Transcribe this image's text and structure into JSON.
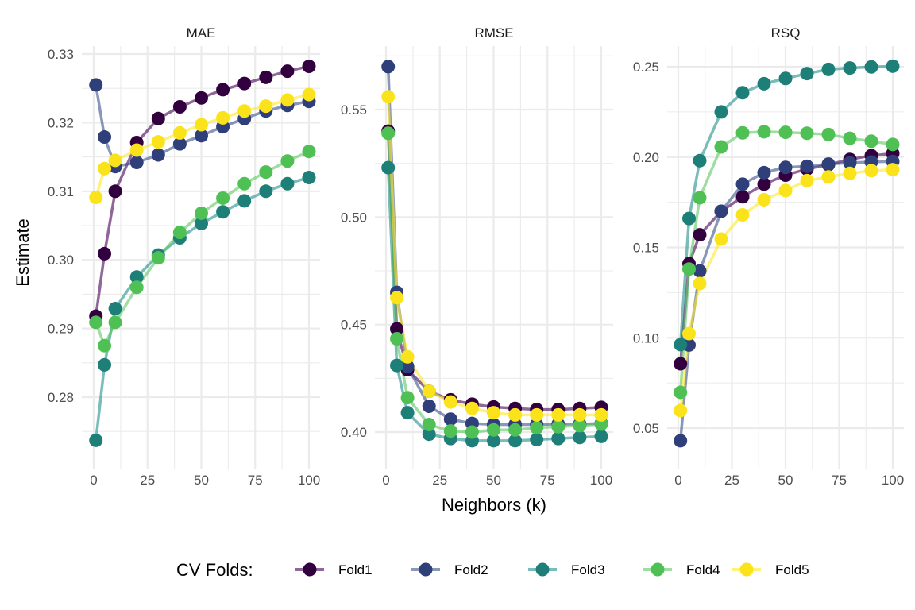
{
  "chart_data": {
    "type": "line",
    "xlabel": "Neighbors (k)",
    "ylabel": "Estimate",
    "legend": {
      "title": "CV Folds:",
      "position": "bottom"
    },
    "grid": true,
    "x": [
      1,
      5,
      10,
      20,
      30,
      40,
      50,
      60,
      70,
      80,
      90,
      100
    ],
    "xlim": [
      0,
      100
    ],
    "x_ticks": [
      "0",
      "25",
      "50",
      "75",
      "100"
    ],
    "series_colors": {
      "Fold1": "#440154",
      "Fold2": "#3B528B",
      "Fold3": "#21908C",
      "Fold4": "#5DC863",
      "Fold5": "#FDE725"
    },
    "point_colors": {
      "Fold1": "#33003f",
      "Fold2": "#2e3f7a",
      "Fold3": "#1e7f78",
      "Fold4": "#4fc154",
      "Fold5": "#fbe31b"
    },
    "panels": [
      {
        "title": "MAE",
        "ylim": [
          0.2705,
          0.3305
        ],
        "y_ticks": [
          "0.28",
          "0.29",
          "0.30",
          "0.31",
          "0.32",
          "0.33"
        ],
        "y_tick_values": [
          0.28,
          0.29,
          0.3,
          0.31,
          0.32,
          0.33
        ],
        "series": [
          {
            "name": "Fold1",
            "values": [
              0.2918,
              0.3009,
              0.31,
              0.3171,
              0.3206,
              0.3223,
              0.3236,
              0.3248,
              0.3257,
              0.3266,
              0.3275,
              0.3282
            ]
          },
          {
            "name": "Fold2",
            "values": [
              0.3255,
              0.3179,
              0.3136,
              0.3142,
              0.3153,
              0.3169,
              0.3181,
              0.3194,
              0.3206,
              0.3217,
              0.3225,
              0.3231
            ]
          },
          {
            "name": "Fold3",
            "values": [
              0.2737,
              0.2847,
              0.2929,
              0.2975,
              0.3007,
              0.3032,
              0.3053,
              0.307,
              0.3086,
              0.31,
              0.3111,
              0.312
            ]
          },
          {
            "name": "Fold4",
            "values": [
              0.2909,
              0.2875,
              0.2909,
              0.296,
              0.3003,
              0.304,
              0.3068,
              0.309,
              0.3111,
              0.3128,
              0.3144,
              0.3158
            ]
          },
          {
            "name": "Fold5",
            "values": [
              0.3091,
              0.3133,
              0.3145,
              0.316,
              0.3172,
              0.3185,
              0.3197,
              0.3207,
              0.3217,
              0.3224,
              0.3233,
              0.3241
            ]
          }
        ]
      },
      {
        "title": "RMSE",
        "ylim": [
          0.388,
          0.578
        ],
        "y_ticks": [
          "0.40",
          "0.45",
          "0.50",
          "0.55"
        ],
        "y_tick_values": [
          0.4,
          0.45,
          0.5,
          0.55
        ],
        "series": [
          {
            "name": "Fold1",
            "values": [
              0.54,
              0.448,
              0.429,
              0.419,
              0.415,
              0.413,
              0.4117,
              0.411,
              0.4105,
              0.4105,
              0.411,
              0.4115
            ]
          },
          {
            "name": "Fold2",
            "values": [
              0.57,
              0.465,
              0.4305,
              0.412,
              0.406,
              0.404,
              0.4035,
              0.4035,
              0.4035,
              0.4037,
              0.4037,
              0.404
            ]
          },
          {
            "name": "Fold3",
            "values": [
              0.523,
              0.431,
              0.409,
              0.399,
              0.397,
              0.396,
              0.396,
              0.396,
              0.3965,
              0.397,
              0.3975,
              0.398
            ]
          },
          {
            "name": "Fold4",
            "values": [
              0.539,
              0.4434,
              0.416,
              0.4035,
              0.4005,
              0.4,
              0.401,
              0.401,
              0.402,
              0.4025,
              0.403,
              0.4037
            ]
          },
          {
            "name": "Fold5",
            "values": [
              0.556,
              0.4625,
              0.435,
              0.419,
              0.414,
              0.411,
              0.409,
              0.408,
              0.408,
              0.408,
              0.408,
              0.408
            ]
          }
        ]
      },
      {
        "title": "RSQ",
        "ylim": [
          0.035,
          0.26
        ],
        "y_ticks": [
          "0.05",
          "0.10",
          "0.15",
          "0.20",
          "0.25"
        ],
        "y_tick_values": [
          0.05,
          0.1,
          0.15,
          0.2,
          0.25
        ],
        "series": [
          {
            "name": "Fold1",
            "values": [
              0.0856,
              0.141,
              0.157,
              0.17,
              0.178,
              0.185,
              0.19,
              0.1934,
              0.1958,
              0.1987,
              0.2008,
              0.202
            ]
          },
          {
            "name": "Fold2",
            "values": [
              0.043,
              0.096,
              0.137,
              0.17,
              0.185,
              0.1914,
              0.1943,
              0.1949,
              0.1961,
              0.1968,
              0.1973,
              0.1976
            ]
          },
          {
            "name": "Fold3",
            "values": [
              0.0962,
              0.166,
              0.198,
              0.225,
              0.2356,
              0.2406,
              0.2435,
              0.2462,
              0.2485,
              0.2493,
              0.2499,
              0.2503
            ]
          },
          {
            "name": "Fold4",
            "values": [
              0.0698,
              0.138,
              0.1775,
              0.2056,
              0.2134,
              0.214,
              0.2137,
              0.2132,
              0.2125,
              0.2104,
              0.2088,
              0.207
            ]
          },
          {
            "name": "Fold5",
            "values": [
              0.0597,
              0.1023,
              0.13,
              0.1546,
              0.168,
              0.1764,
              0.1815,
              0.187,
              0.189,
              0.191,
              0.1925,
              0.193
            ]
          }
        ]
      }
    ]
  }
}
